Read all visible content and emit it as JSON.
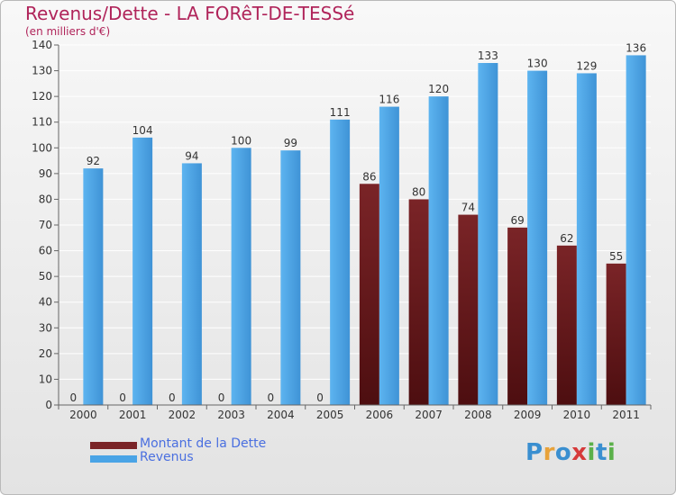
{
  "title": "Revenus/Dette - LA FORêT-DE-TESSé",
  "subtitle": "(en milliers d'€)",
  "logo": {
    "text": "Proxiti",
    "letters": [
      "P",
      "r",
      "o",
      "x",
      "i",
      "t",
      "i"
    ],
    "colors": [
      "#3a8fd0",
      "#e8a23a",
      "#3a8fd0",
      "#d63a3a",
      "#5bb04a",
      "#3a8fd0",
      "#5bb04a"
    ]
  },
  "colors": {
    "dette": "#7a2427",
    "revenus": "#4aa4e6",
    "axis": "#666666",
    "grid": "#ffffff",
    "text": "#333333"
  },
  "chart_data": {
    "type": "bar",
    "categories": [
      "2000",
      "2001",
      "2002",
      "2003",
      "2004",
      "2005",
      "2006",
      "2007",
      "2008",
      "2009",
      "2010",
      "2011"
    ],
    "series": [
      {
        "name": "Montant de la Dette",
        "values": [
          0,
          0,
          0,
          0,
          0,
          0,
          86,
          80,
          74,
          69,
          62,
          55
        ]
      },
      {
        "name": "Revenus",
        "values": [
          92,
          104,
          94,
          100,
          99,
          111,
          116,
          120,
          133,
          130,
          129,
          136
        ]
      }
    ],
    "ylim": [
      0,
      140
    ],
    "yticks": [
      0,
      10,
      20,
      30,
      40,
      50,
      60,
      70,
      80,
      90,
      100,
      110,
      120,
      130,
      140
    ],
    "grid": true,
    "legend_position": "bottom-left",
    "data_labels": true
  }
}
